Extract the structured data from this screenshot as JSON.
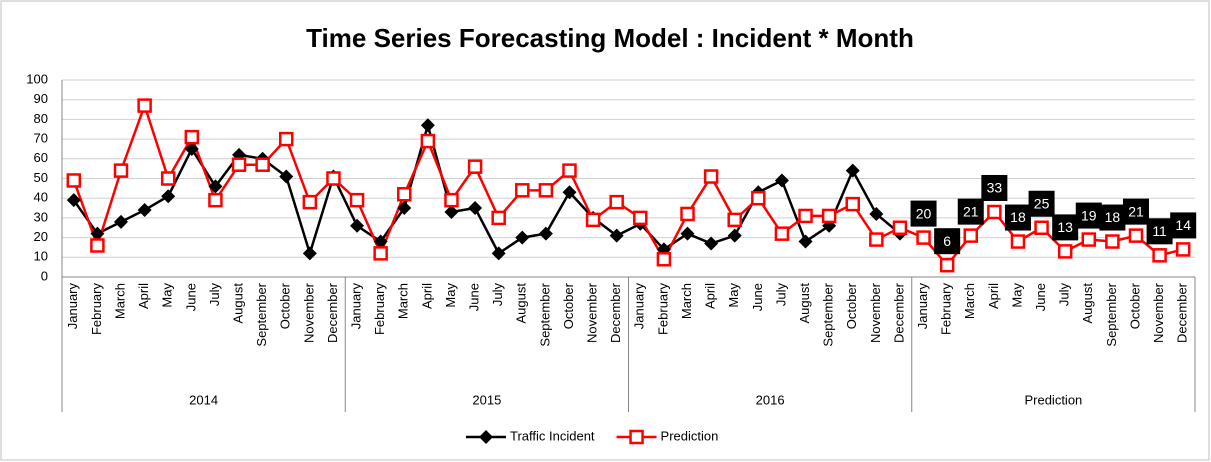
{
  "chart_data": {
    "type": "line",
    "title": "Time Series Forecasting  Model : Incident * Month",
    "categories": [
      "January",
      "February",
      "March",
      "April",
      "May",
      "June",
      "July",
      "August",
      "September",
      "October",
      "November",
      "December",
      "January",
      "February",
      "March",
      "April",
      "May",
      "June",
      "July",
      "August",
      "September",
      "October",
      "November",
      "December",
      "January",
      "February",
      "March",
      "April",
      "May",
      "June",
      "July",
      "August",
      "September",
      "October",
      "November",
      "December",
      "January",
      "February",
      "March",
      "April",
      "May",
      "June",
      "July",
      "August",
      "September",
      "October",
      "November",
      "December"
    ],
    "groups": [
      "2014",
      "2015",
      "2016",
      "Prediction"
    ],
    "series": [
      {
        "name": "Traffic Incident",
        "color": "#000000",
        "marker": "diamond",
        "values": [
          39,
          22,
          28,
          34,
          41,
          65,
          46,
          62,
          60,
          51,
          12,
          51,
          26,
          18,
          35,
          77,
          33,
          35,
          12,
          20,
          22,
          43,
          30,
          21,
          27,
          14,
          22,
          17,
          21,
          43,
          49,
          18,
          26,
          54,
          32,
          22,
          null,
          null,
          null,
          null,
          null,
          null,
          null,
          null,
          null,
          null,
          null,
          null
        ]
      },
      {
        "name": "Prediction",
        "color": "#ff0000",
        "marker": "square",
        "values": [
          49,
          16,
          54,
          87,
          50,
          71,
          39,
          57,
          57,
          70,
          38,
          50,
          39,
          12,
          42,
          69,
          39,
          56,
          30,
          44,
          44,
          54,
          29,
          38,
          30,
          9,
          32,
          51,
          29,
          40,
          22,
          31,
          31,
          37,
          19,
          25,
          20,
          6,
          21,
          33,
          18,
          25,
          13,
          19,
          18,
          21,
          11,
          14
        ],
        "value_labels": [
          null,
          null,
          null,
          null,
          null,
          null,
          null,
          null,
          null,
          null,
          null,
          null,
          null,
          null,
          null,
          null,
          null,
          null,
          null,
          null,
          null,
          null,
          null,
          null,
          null,
          null,
          null,
          null,
          null,
          null,
          null,
          null,
          null,
          null,
          null,
          null,
          "20",
          "6",
          "21",
          "33",
          "18",
          "25",
          "13",
          "19",
          "18",
          "21",
          "11",
          "14"
        ]
      }
    ],
    "ylim": [
      0,
      100
    ],
    "yticks": [
      0,
      10,
      20,
      30,
      40,
      50,
      60,
      70,
      80,
      90,
      100
    ],
    "grid": true,
    "legend": "bottom"
  }
}
